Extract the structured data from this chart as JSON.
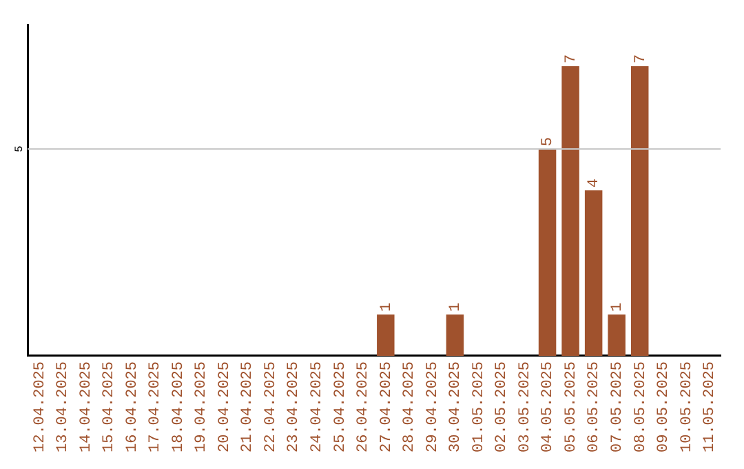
{
  "chart_data": {
    "type": "bar",
    "categories": [
      "12.04.2025",
      "13.04.2025",
      "14.04.2025",
      "15.04.2025",
      "16.04.2025",
      "17.04.2025",
      "18.04.2025",
      "19.04.2025",
      "20.04.2025",
      "21.04.2025",
      "22.04.2025",
      "23.04.2025",
      "24.04.2025",
      "25.04.2025",
      "26.04.2025",
      "27.04.2025",
      "28.04.2025",
      "29.04.2025",
      "30.04.2025",
      "01.05.2025",
      "02.05.2025",
      "03.05.2025",
      "04.05.2025",
      "05.05.2025",
      "06.05.2025",
      "07.05.2025",
      "08.05.2025",
      "09.05.2025",
      "10.05.2025",
      "11.05.2025"
    ],
    "values": [
      null,
      null,
      null,
      null,
      null,
      null,
      null,
      null,
      null,
      null,
      null,
      null,
      null,
      null,
      null,
      1,
      null,
      null,
      1,
      null,
      null,
      null,
      5,
      7,
      4,
      1,
      7,
      null,
      null,
      null
    ],
    "data_labels": true,
    "color": "#a0522d",
    "ref_lines": [
      {
        "axis": "y",
        "value": 5,
        "label": "5",
        "color": "#c8c8c8"
      }
    ],
    "legend": false
  }
}
